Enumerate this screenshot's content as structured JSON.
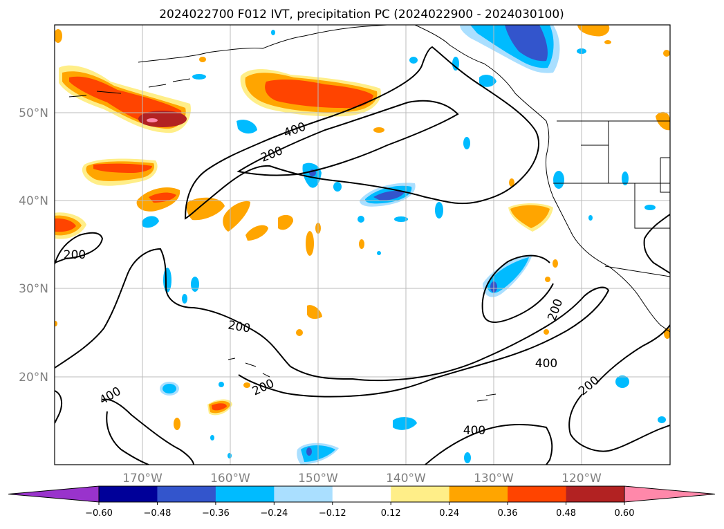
{
  "title": "2024022700 F012 IVT, precipitation PC (2024022900 - 2024030100)",
  "map": {
    "lat_labels": [
      "50°N",
      "40°N",
      "30°N",
      "20°N"
    ],
    "lon_labels": [
      "170°W",
      "160°W",
      "150°W",
      "140°W",
      "130°W",
      "120°W"
    ],
    "lat_range": [
      10,
      60
    ],
    "lon_range": [
      -180,
      -110
    ],
    "gridlines": true
  },
  "contour_labels": [
    "200",
    "400",
    "200",
    "200",
    "200",
    "400",
    "200",
    "400",
    "200",
    "400"
  ],
  "colorbar": {
    "ticks": [
      "−0.60",
      "−0.48",
      "−0.36",
      "−0.24",
      "−0.12",
      "0.12",
      "0.24",
      "0.36",
      "0.48",
      "0.60"
    ],
    "colors": [
      "#9933cc",
      "#000099",
      "#3355cc",
      "#00bbff",
      "#aadfff",
      "#ffffff",
      "#ffee88",
      "#ffa500",
      "#ff4400",
      "#b22222",
      "#ff88aa"
    ],
    "extend": "both"
  },
  "legend_colors": {
    "ivt_contour": "#000000",
    "coastline": "#000000"
  }
}
